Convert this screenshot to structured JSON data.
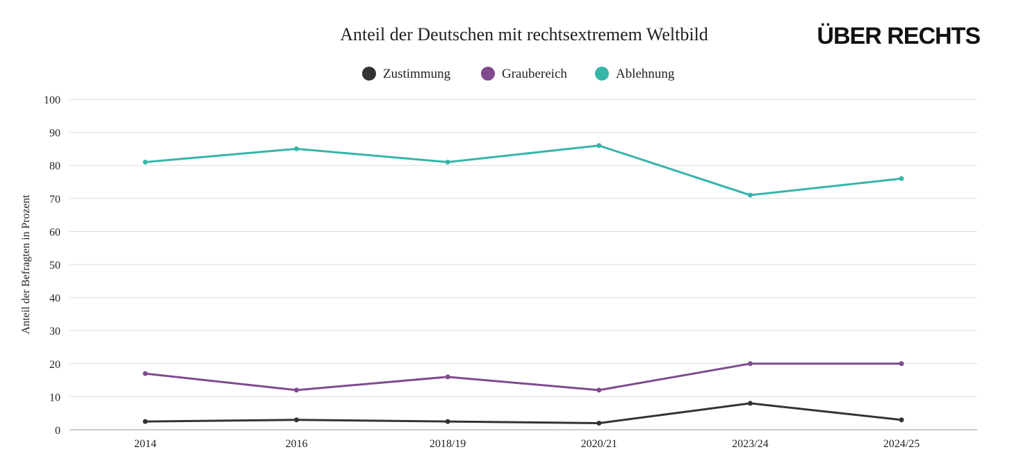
{
  "logo": "ÜBER RECHTS",
  "chart_data": {
    "type": "line",
    "title": "Anteil der Deutschen mit rechtsextremem Weltbild",
    "xlabel": "",
    "ylabel": "Anteil der Befragten in Prozent",
    "categories": [
      "2014",
      "2016",
      "2018/19",
      "2020/21",
      "2023/24",
      "2024/25"
    ],
    "ylim": [
      0,
      100
    ],
    "yticks": [
      0,
      10,
      20,
      30,
      40,
      50,
      60,
      70,
      80,
      90,
      100
    ],
    "grid": true,
    "legend_position": "top-center",
    "series": [
      {
        "name": "Zustimmung",
        "color": "#333333",
        "values": [
          2.5,
          3,
          2.5,
          2,
          8,
          3
        ]
      },
      {
        "name": "Graubereich",
        "color": "#7f4a8e",
        "values": [
          17,
          12,
          16,
          12,
          20,
          20
        ]
      },
      {
        "name": "Ablehnung",
        "color": "#35b5a8",
        "values": [
          81,
          85,
          81,
          86,
          71,
          76
        ]
      }
    ]
  }
}
